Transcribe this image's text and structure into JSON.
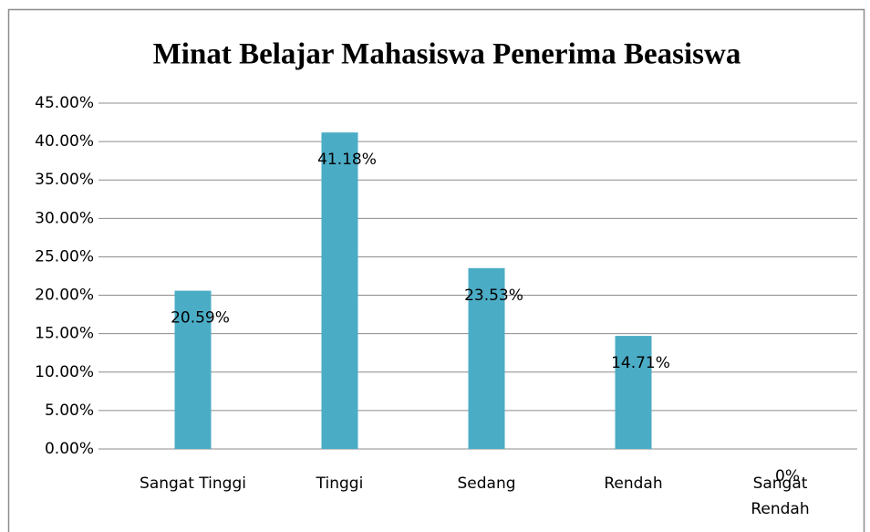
{
  "chart_data": {
    "type": "bar",
    "title": "Minat Belajar Mahasiswa Penerima Beasiswa",
    "categories": [
      "Sangat Tinggi",
      "Tinggi",
      "Sedang",
      "Rendah",
      "Sangat Rendah"
    ],
    "values": [
      20.59,
      41.18,
      23.53,
      14.71,
      0
    ],
    "value_labels": [
      "20.59%",
      "41.18%",
      "23.53%",
      "14.71%",
      "0%"
    ],
    "color": "#4bacc6",
    "ylim": [
      0,
      45
    ],
    "yticks": [
      {
        "value": 0,
        "label": "0.00%"
      },
      {
        "value": 5,
        "label": "5.00%"
      },
      {
        "value": 10,
        "label": "10.00%"
      },
      {
        "value": 15,
        "label": "15.00%"
      },
      {
        "value": 20,
        "label": "20.00%"
      },
      {
        "value": 25,
        "label": "25.00%"
      },
      {
        "value": 30,
        "label": "30.00%"
      },
      {
        "value": 35,
        "label": "35.00%"
      },
      {
        "value": 40,
        "label": "40.00%"
      },
      {
        "value": 45,
        "label": "45.00%"
      }
    ],
    "grid": true
  }
}
